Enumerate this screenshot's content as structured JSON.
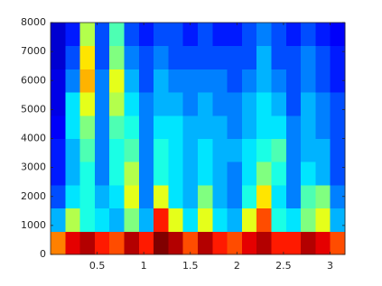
{
  "chart_data": {
    "type": "heatmap",
    "colormap": "jet",
    "xlim": [
      0,
      3.16
    ],
    "ylim": [
      0,
      8000
    ],
    "xticks": [
      0.5,
      1,
      1.5,
      2,
      2.5,
      3
    ],
    "yticks": [
      0,
      1000,
      2000,
      3000,
      4000,
      5000,
      6000,
      7000,
      8000
    ],
    "values": [
      [
        0.75,
        0.9,
        0.95,
        0.85,
        0.8,
        0.95,
        0.85,
        1.0,
        0.95,
        0.8,
        0.95,
        0.85,
        0.8,
        0.9,
        0.95,
        0.85,
        0.85,
        0.95,
        0.9,
        0.8
      ],
      [
        0.3,
        0.55,
        0.4,
        0.35,
        0.3,
        0.5,
        0.3,
        0.85,
        0.6,
        0.35,
        0.6,
        0.35,
        0.3,
        0.6,
        0.8,
        0.4,
        0.35,
        0.5,
        0.6,
        0.3
      ],
      [
        0.2,
        0.35,
        0.4,
        0.3,
        0.35,
        0.6,
        0.25,
        0.6,
        0.35,
        0.3,
        0.5,
        0.3,
        0.25,
        0.4,
        0.65,
        0.35,
        0.25,
        0.45,
        0.5,
        0.25
      ],
      [
        0.15,
        0.3,
        0.4,
        0.25,
        0.4,
        0.55,
        0.25,
        0.4,
        0.35,
        0.3,
        0.35,
        0.3,
        0.25,
        0.35,
        0.5,
        0.4,
        0.25,
        0.35,
        0.3,
        0.2
      ],
      [
        0.15,
        0.3,
        0.45,
        0.25,
        0.4,
        0.45,
        0.25,
        0.4,
        0.35,
        0.3,
        0.35,
        0.3,
        0.3,
        0.35,
        0.4,
        0.45,
        0.25,
        0.3,
        0.3,
        0.2
      ],
      [
        0.12,
        0.35,
        0.5,
        0.25,
        0.45,
        0.4,
        0.25,
        0.35,
        0.35,
        0.3,
        0.3,
        0.3,
        0.25,
        0.3,
        0.35,
        0.35,
        0.25,
        0.3,
        0.25,
        0.2
      ],
      [
        0.1,
        0.35,
        0.6,
        0.25,
        0.55,
        0.35,
        0.25,
        0.3,
        0.3,
        0.25,
        0.3,
        0.25,
        0.25,
        0.3,
        0.35,
        0.3,
        0.2,
        0.3,
        0.25,
        0.2
      ],
      [
        0.1,
        0.25,
        0.7,
        0.25,
        0.6,
        0.3,
        0.2,
        0.3,
        0.25,
        0.25,
        0.25,
        0.25,
        0.2,
        0.25,
        0.3,
        0.25,
        0.2,
        0.25,
        0.2,
        0.15
      ],
      [
        0.08,
        0.2,
        0.65,
        0.2,
        0.5,
        0.25,
        0.2,
        0.25,
        0.2,
        0.2,
        0.2,
        0.2,
        0.2,
        0.2,
        0.3,
        0.2,
        0.2,
        0.25,
        0.2,
        0.15
      ],
      [
        0.08,
        0.15,
        0.55,
        0.2,
        0.45,
        0.2,
        0.15,
        0.2,
        0.2,
        0.15,
        0.2,
        0.15,
        0.15,
        0.2,
        0.25,
        0.2,
        0.15,
        0.2,
        0.15,
        0.12
      ]
    ]
  }
}
